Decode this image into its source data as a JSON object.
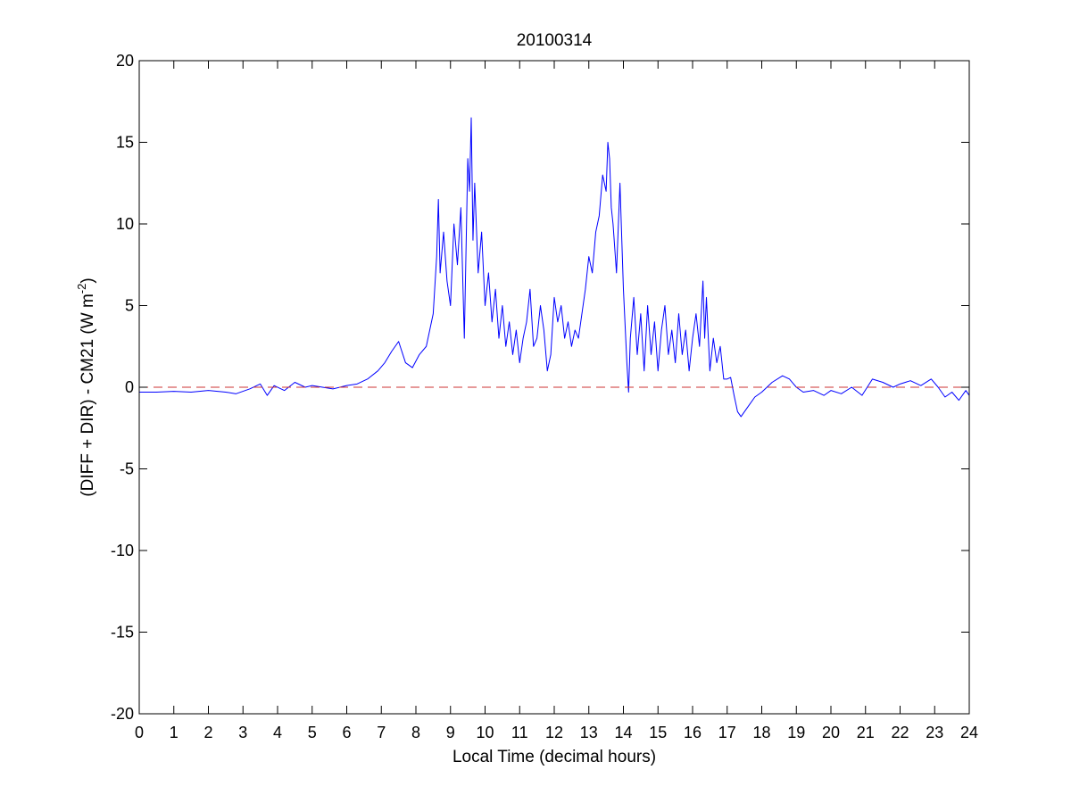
{
  "chart_data": {
    "type": "line",
    "title": "20100314",
    "xlabel": "Local Time (decimal hours)",
    "ylabel": {
      "prefix": "(DIFF + DIR) - CM21 (W m",
      "superscript": "-2",
      "suffix": ")"
    },
    "xlim": [
      0,
      24
    ],
    "ylim": [
      -20,
      20
    ],
    "xticks": [
      0,
      1,
      2,
      3,
      4,
      5,
      6,
      7,
      8,
      9,
      10,
      11,
      12,
      13,
      14,
      15,
      16,
      17,
      18,
      19,
      20,
      21,
      22,
      23,
      24
    ],
    "yticks": [
      -20,
      -15,
      -10,
      -5,
      0,
      5,
      10,
      15,
      20
    ],
    "grid": false,
    "series": [
      {
        "color": "#0000ff",
        "style": "solid",
        "x": [
          0,
          0.5,
          1,
          1.5,
          2,
          2.5,
          2.8,
          3.2,
          3.5,
          3.7,
          3.9,
          4.2,
          4.5,
          4.8,
          5,
          5.3,
          5.6,
          6,
          6.3,
          6.6,
          6.9,
          7.1,
          7.3,
          7.5,
          7.7,
          7.9,
          8.1,
          8.3,
          8.5,
          8.6,
          8.65,
          8.7,
          8.8,
          8.9,
          9.0,
          9.1,
          9.2,
          9.3,
          9.4,
          9.5,
          9.55,
          9.6,
          9.65,
          9.7,
          9.8,
          9.9,
          10.0,
          10.1,
          10.2,
          10.3,
          10.4,
          10.5,
          10.6,
          10.7,
          10.8,
          10.9,
          11.0,
          11.1,
          11.2,
          11.3,
          11.4,
          11.5,
          11.6,
          11.7,
          11.8,
          11.9,
          12.0,
          12.1,
          12.2,
          12.3,
          12.4,
          12.5,
          12.6,
          12.7,
          12.8,
          12.9,
          13.0,
          13.1,
          13.2,
          13.3,
          13.4,
          13.5,
          13.55,
          13.6,
          13.65,
          13.7,
          13.8,
          13.9,
          14.0,
          14.1,
          14.15,
          14.2,
          14.3,
          14.4,
          14.5,
          14.6,
          14.7,
          14.8,
          14.9,
          15.0,
          15.1,
          15.2,
          15.3,
          15.4,
          15.5,
          15.6,
          15.7,
          15.8,
          15.9,
          16.0,
          16.1,
          16.2,
          16.3,
          16.35,
          16.4,
          16.5,
          16.6,
          16.7,
          16.8,
          16.9,
          17.0,
          17.1,
          17.2,
          17.3,
          17.4,
          17.6,
          17.8,
          18.0,
          18.3,
          18.6,
          18.8,
          19.0,
          19.2,
          19.5,
          19.8,
          20.0,
          20.3,
          20.6,
          20.9,
          21.2,
          21.5,
          21.8,
          22.0,
          22.3,
          22.6,
          22.9,
          23.1,
          23.3,
          23.5,
          23.7,
          23.9,
          24.0
        ],
        "y": [
          -0.3,
          -0.3,
          -0.25,
          -0.3,
          -0.2,
          -0.3,
          -0.4,
          -0.1,
          0.2,
          -0.5,
          0.1,
          -0.2,
          0.3,
          0.0,
          0.1,
          0.0,
          -0.1,
          0.1,
          0.2,
          0.5,
          1.0,
          1.5,
          2.2,
          2.8,
          1.5,
          1.2,
          2.0,
          2.5,
          4.5,
          8.0,
          11.5,
          7.0,
          9.5,
          6.5,
          5.0,
          10.0,
          7.5,
          11.0,
          3.0,
          14.0,
          12.0,
          16.5,
          9.0,
          12.5,
          7.0,
          9.5,
          5.0,
          7.0,
          4.0,
          6.0,
          3.0,
          5.0,
          2.5,
          4.0,
          2.0,
          3.5,
          1.5,
          3.0,
          4.0,
          6.0,
          2.5,
          3.0,
          5.0,
          3.5,
          1.0,
          2.0,
          5.5,
          4.0,
          5.0,
          3.0,
          4.0,
          2.5,
          3.5,
          3.0,
          4.5,
          6.0,
          8.0,
          7.0,
          9.5,
          10.5,
          13.0,
          12.0,
          15.0,
          14.0,
          11.0,
          10.0,
          7.0,
          12.5,
          6.0,
          1.5,
          -0.3,
          3.0,
          5.5,
          2.0,
          4.5,
          1.0,
          5.0,
          2.0,
          4.0,
          1.0,
          3.5,
          5.0,
          2.0,
          3.5,
          1.5,
          4.5,
          2.0,
          3.5,
          1.0,
          3.0,
          4.5,
          2.5,
          6.5,
          3.0,
          5.5,
          1.0,
          3.0,
          1.5,
          2.5,
          0.5,
          0.5,
          0.6,
          -0.5,
          -1.5,
          -1.8,
          -1.2,
          -0.6,
          -0.3,
          0.3,
          0.7,
          0.5,
          0.0,
          -0.3,
          -0.2,
          -0.5,
          -0.2,
          -0.4,
          0.0,
          -0.5,
          0.5,
          0.3,
          0.0,
          0.2,
          0.4,
          0.1,
          0.5,
          0.0,
          -0.6,
          -0.3,
          -0.8,
          -0.2,
          -0.5
        ]
      },
      {
        "color": "#cc3333",
        "style": "dashed",
        "x": [
          0,
          24
        ],
        "y": [
          0,
          0
        ]
      }
    ]
  }
}
